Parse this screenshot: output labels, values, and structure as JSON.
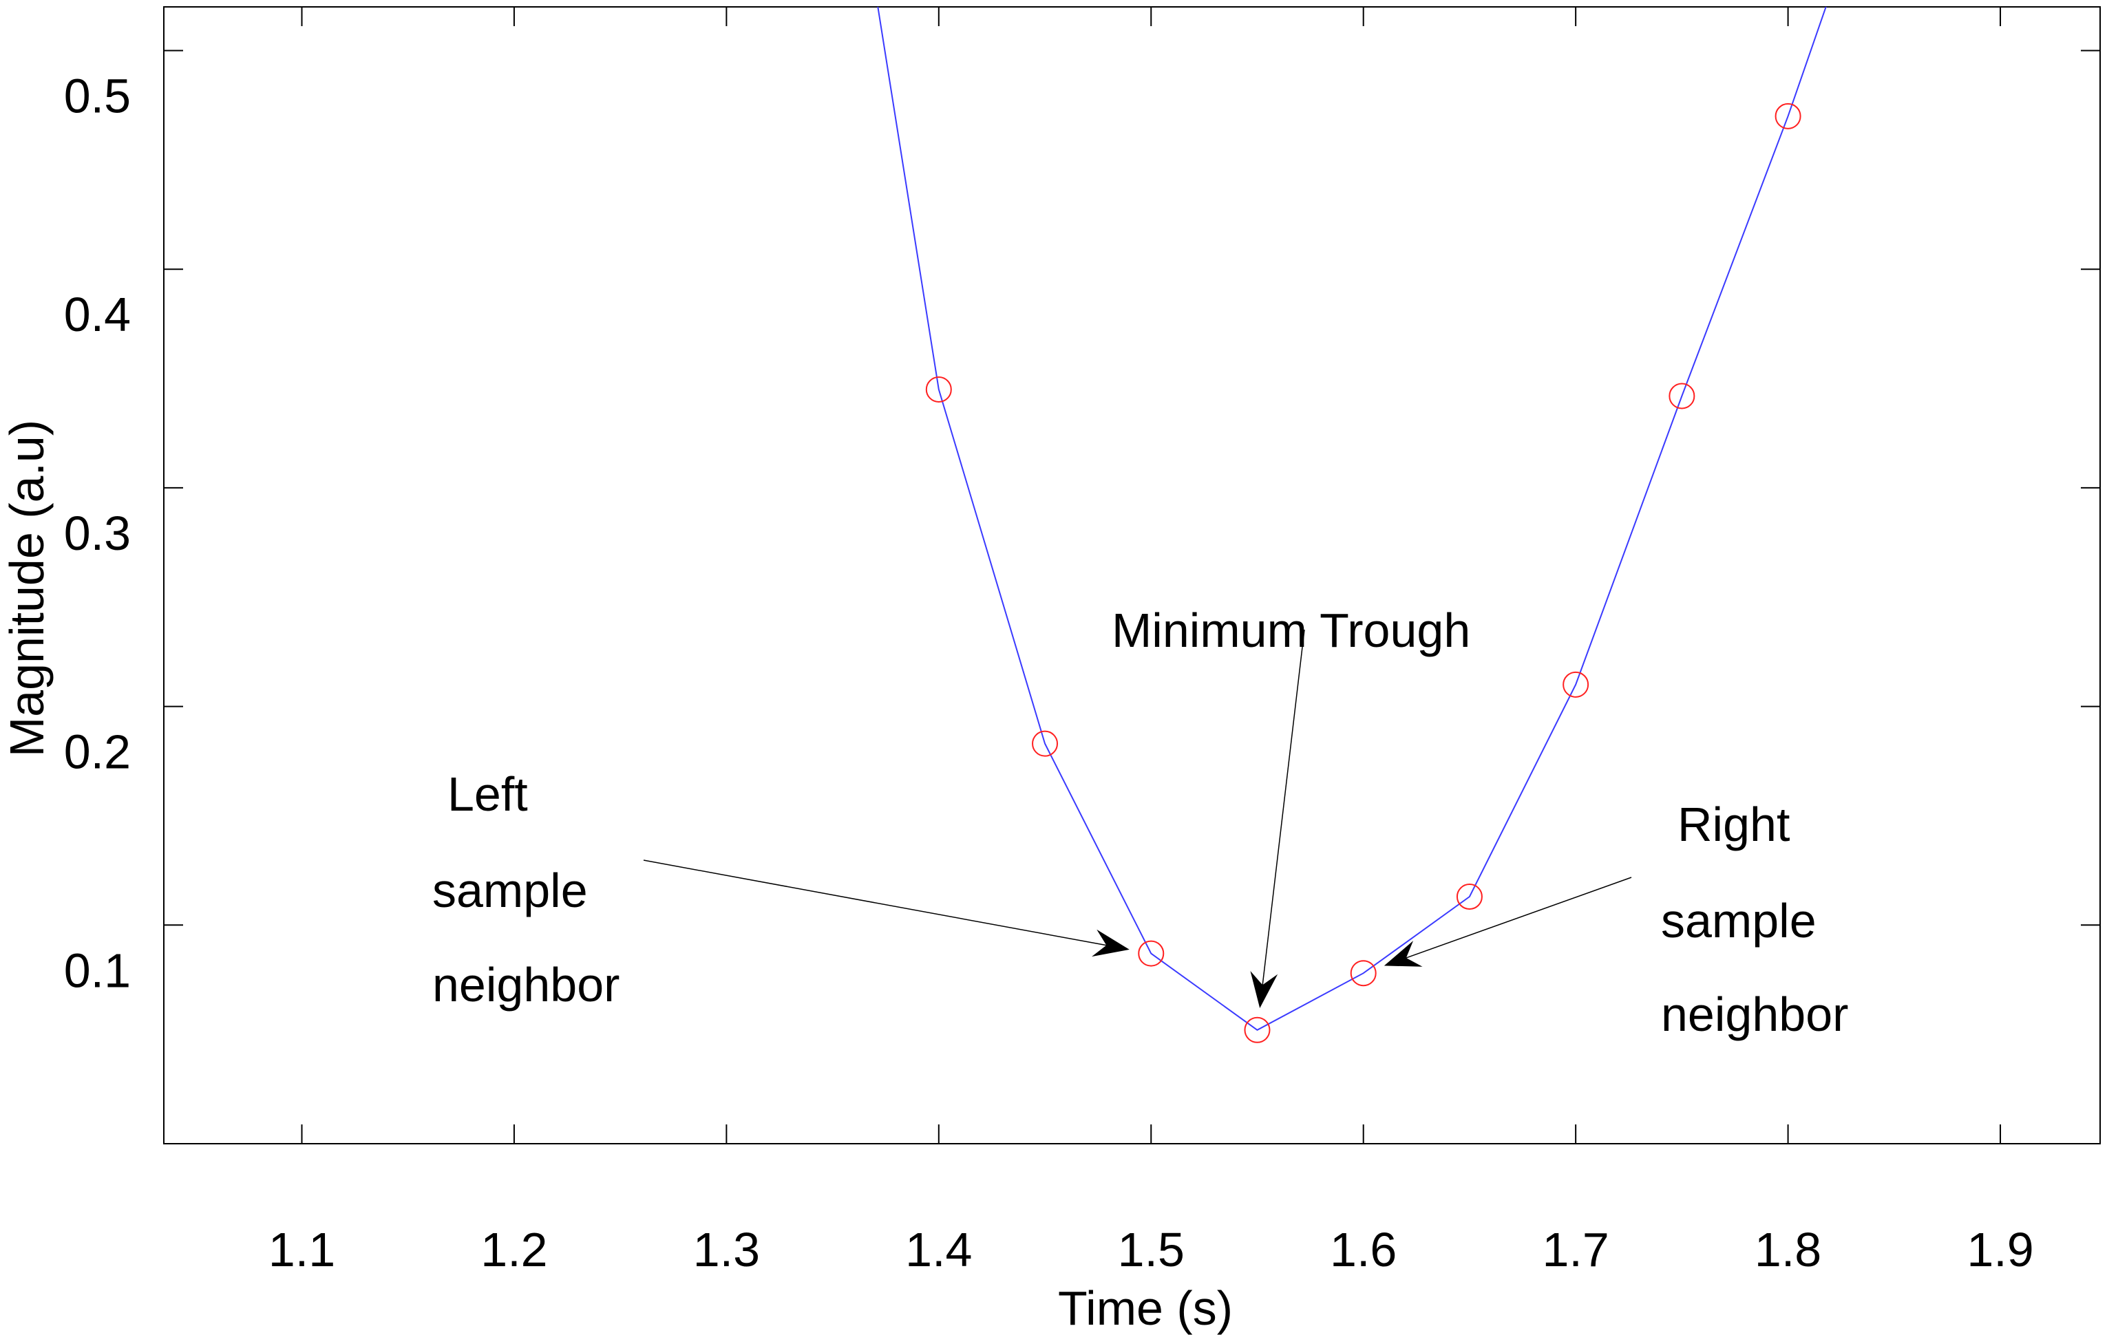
{
  "chart_data": {
    "type": "line",
    "title": "",
    "xlabel": "Time (s)",
    "ylabel": "Magnitude (a.u)",
    "xlim": [
      1.035,
      1.947
    ],
    "ylim": [
      0.0,
      0.52
    ],
    "xticks": [
      1.1,
      1.2,
      1.3,
      1.4,
      1.5,
      1.6,
      1.7,
      1.8,
      1.9
    ],
    "xtick_labels": [
      "1.1",
      "1.2",
      "1.3",
      "1.4",
      "1.5",
      "1.6",
      "1.7",
      "1.8",
      "1.9"
    ],
    "yticks": [
      0.1,
      0.2,
      0.3,
      0.4,
      0.5
    ],
    "ytick_labels": [
      "0.1",
      "0.2",
      "0.3",
      "0.4",
      "0.5"
    ],
    "grid": false,
    "series": [
      {
        "line_color": "#3a3aff",
        "marker_color": "#ff2020",
        "marker": "open-circle",
        "x": [
          1.35,
          1.4,
          1.45,
          1.5,
          1.55,
          1.6,
          1.65,
          1.7,
          1.75,
          1.8,
          1.85
        ],
        "y": [
          0.65,
          0.345,
          0.183,
          0.087,
          0.052,
          0.078,
          0.113,
          0.21,
          0.342,
          0.47,
          0.61
        ],
        "marker_x": [
          1.4,
          1.45,
          1.5,
          1.55,
          1.6,
          1.65,
          1.7,
          1.75,
          1.8
        ],
        "marker_y": [
          0.345,
          0.183,
          0.087,
          0.052,
          0.078,
          0.113,
          0.21,
          0.342,
          0.47
        ]
      }
    ],
    "annotations": [
      {
        "lines": [
          "Minimum Trough"
        ],
        "target": [
          1.55,
          0.052
        ]
      },
      {
        "lines": [
          "Left",
          "sample",
          "neighbor"
        ],
        "target": [
          1.5,
          0.087
        ]
      },
      {
        "lines": [
          "Right",
          "sample",
          "neighbor"
        ],
        "target": [
          1.6,
          0.078
        ]
      }
    ]
  }
}
